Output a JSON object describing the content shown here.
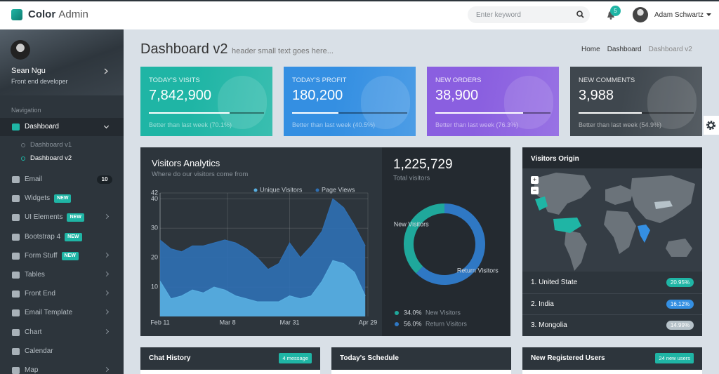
{
  "header": {
    "brand": "Color",
    "brand_suffix": "Admin",
    "search_placeholder": "Enter keyword",
    "notification_count": "5",
    "user": "Adam Schwartz"
  },
  "sidebar": {
    "name": "Sean Ngu",
    "role": "Front end developer",
    "section": "Navigation",
    "items": [
      {
        "label": "Dashboard",
        "submenu": true,
        "children": [
          "Dashboard v1",
          "Dashboard v2"
        ]
      },
      {
        "label": "Email",
        "count": "10"
      },
      {
        "label": "Widgets",
        "tag": "NEW"
      },
      {
        "label": "UI Elements",
        "tag": "NEW",
        "submenu": true
      },
      {
        "label": "Bootstrap 4",
        "tag": "NEW"
      },
      {
        "label": "Form Stuff",
        "tag": "NEW",
        "submenu": true
      },
      {
        "label": "Tables",
        "submenu": true
      },
      {
        "label": "Front End",
        "submenu": true
      },
      {
        "label": "Email Template",
        "submenu": true
      },
      {
        "label": "Chart",
        "submenu": true
      },
      {
        "label": "Calendar"
      },
      {
        "label": "Map",
        "submenu": true
      }
    ]
  },
  "page": {
    "title": "Dashboard v2",
    "subtitle": "header small text goes here...",
    "breadcrumb": [
      "Home",
      "Dashboard",
      "Dashboard v2"
    ]
  },
  "stats": [
    {
      "label": "TODAY'S VISITS",
      "value": "7,842,900",
      "progress": 70.1,
      "note": "Better than last week (70.1%)",
      "color": "#1fb5a5"
    },
    {
      "label": "TODAY'S PROFIT",
      "value": "180,200",
      "progress": 40.5,
      "note": "Better than last week (40.5%)",
      "color": "#348fe2"
    },
    {
      "label": "NEW ORDERS",
      "value": "38,900",
      "progress": 76.3,
      "note": "Better than last week (76.3%)",
      "color": "#8a5fe0"
    },
    {
      "label": "NEW COMMENTS",
      "value": "3,988",
      "progress": 54.9,
      "note": "Better than last week (54.9%)",
      "color": "#3f474e"
    }
  ],
  "chart_data": [
    {
      "type": "area",
      "title": "Visitors Analytics",
      "subtitle": "Where do our visitors come from",
      "x": [
        0,
        4,
        8,
        12,
        16,
        20,
        24,
        28,
        32,
        36,
        40,
        44,
        48,
        52,
        56,
        60,
        64,
        68,
        72,
        76
      ],
      "series": [
        {
          "name": "Unique Visitors",
          "color": "#58aee0",
          "values": [
            12,
            6,
            7,
            9,
            8,
            10,
            9,
            7,
            6,
            5,
            5,
            5,
            7,
            6,
            7,
            12,
            19,
            18,
            15,
            7
          ]
        },
        {
          "name": "Page Views",
          "color": "#2f6fb2",
          "values": [
            26,
            23,
            22,
            24,
            24,
            25,
            26,
            25,
            23,
            20,
            16,
            18,
            25,
            20,
            24,
            29,
            40,
            37,
            31,
            24
          ]
        }
      ],
      "xlim": [
        0,
        77
      ],
      "xticks": [
        {
          "value": 0,
          "label": "Feb 11"
        },
        {
          "value": 25,
          "label": "Mar 8"
        },
        {
          "value": 48,
          "label": "Mar 31"
        },
        {
          "value": 77,
          "label": "Apr 29"
        }
      ],
      "ylim": [
        0,
        42
      ],
      "yticks": [
        10,
        20,
        30,
        40,
        42
      ],
      "grid": true
    },
    {
      "type": "pie",
      "title": "1,225,729",
      "subtitle": "Total visitors",
      "categories": [
        "New Visitors",
        "Return Visitors"
      ],
      "values": [
        34.0,
        56.0
      ],
      "value_labels": [
        "34.0%",
        "56.0%"
      ],
      "colors": [
        "#1fa89b",
        "#2f78c4"
      ]
    }
  ],
  "visitors_origin": {
    "title": "Visitors Origin",
    "zoom_in": "+",
    "zoom_out": "−",
    "countries": [
      {
        "name": "1. United State",
        "value": "20.95%",
        "color": "#1fb5a5"
      },
      {
        "name": "2. India",
        "value": "16.12%",
        "color": "#348fe2"
      },
      {
        "name": "3. Mongolia",
        "value": "14.99%",
        "color": "#b6c2c9"
      }
    ]
  },
  "panels": [
    {
      "title": "Chat History",
      "badge": "4 message"
    },
    {
      "title": "Today's Schedule"
    },
    {
      "title": "New Registered Users",
      "badge": "24 new users"
    }
  ]
}
